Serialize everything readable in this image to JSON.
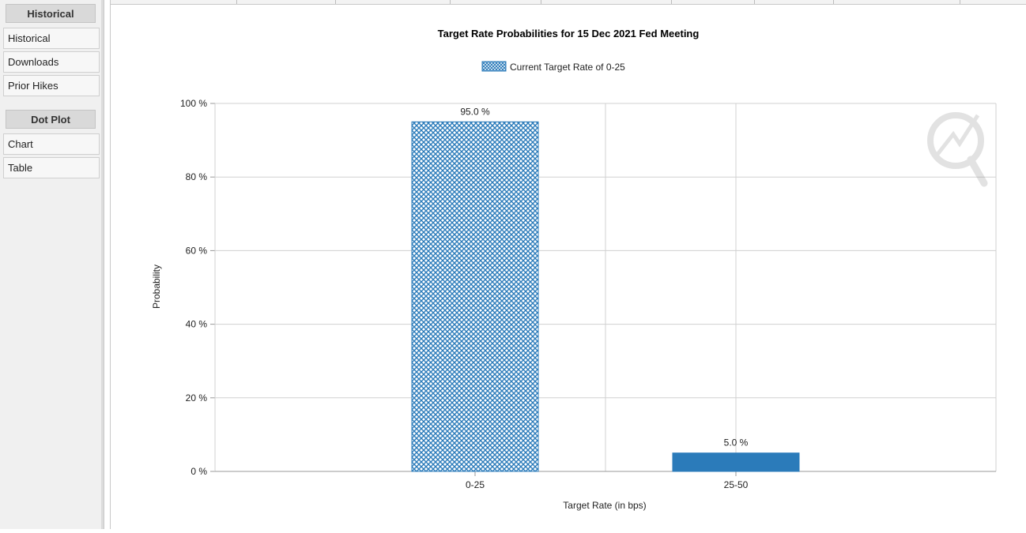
{
  "sidebar": {
    "sections": [
      {
        "header": "Historical",
        "items": [
          "Historical",
          "Downloads",
          "Prior Hikes"
        ]
      },
      {
        "header": "Dot Plot",
        "items": [
          "Chart",
          "Table"
        ]
      }
    ]
  },
  "colors": {
    "bar": "#2b7bba",
    "grid": "#d0d0d0",
    "axis": "#999999"
  },
  "chart_data": {
    "type": "bar",
    "title": "Target Rate Probabilities for 15 Dec 2021 Fed Meeting",
    "legend_position": "top-center",
    "xlabel": "Target Rate (in bps)",
    "ylabel": "Probability",
    "ylim": [
      0,
      100
    ],
    "yticks": [
      "0 %",
      "20 %",
      "40 %",
      "60 %",
      "80 %",
      "100 %"
    ],
    "grid": true,
    "categories": [
      "0-25",
      "25-50"
    ],
    "series": [
      {
        "name": "Current Target Rate of 0-25",
        "values": [
          95.0,
          5.0
        ],
        "data_labels": [
          "95.0 %",
          "5.0 %"
        ],
        "patterns": [
          "crosshatch",
          "solid"
        ]
      }
    ]
  }
}
